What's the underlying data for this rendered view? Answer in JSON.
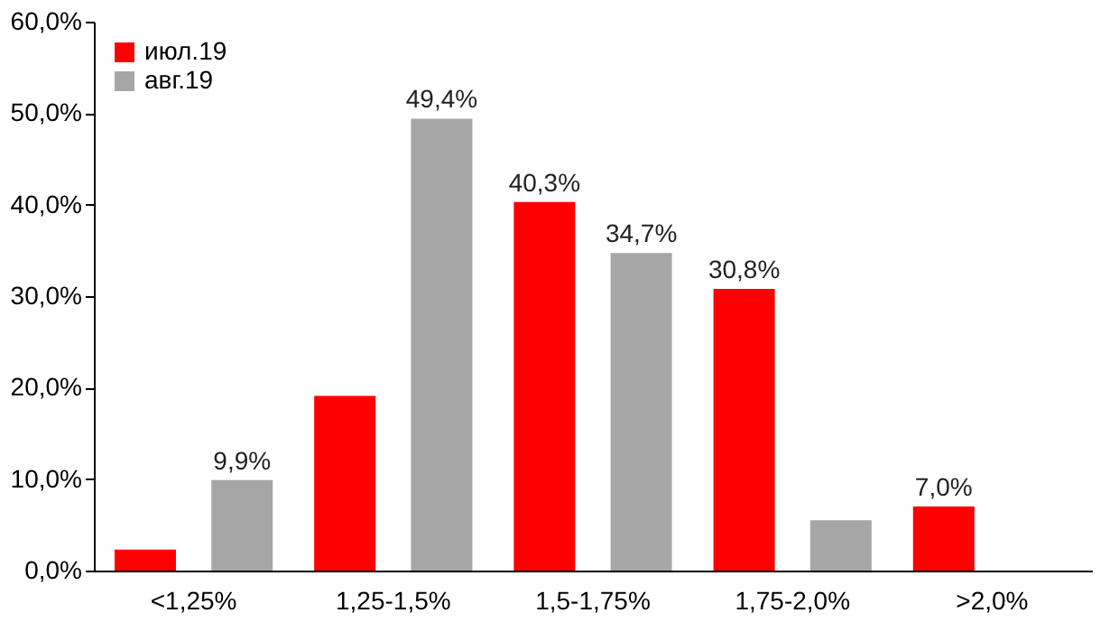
{
  "chart_data": {
    "type": "bar",
    "categories": [
      "<1,25%",
      "1,25-1,5%",
      "1,5-1,75%",
      "1,75-2,0%",
      ">2,0%"
    ],
    "series": [
      {
        "name": "июл.19",
        "color": "#ff0000",
        "values": [
          2.3,
          19.1,
          40.3,
          30.8,
          7.0
        ],
        "value_labels": [
          null,
          null,
          "40,3%",
          "30,8%",
          "7,0%"
        ]
      },
      {
        "name": "авг.19",
        "color": "#a6a6a6",
        "values": [
          9.9,
          49.4,
          34.7,
          5.5,
          null
        ],
        "value_labels": [
          "9,9%",
          "49,4%",
          "34,7%",
          null,
          null
        ]
      }
    ],
    "ylim": [
      0,
      60
    ],
    "yticks": [
      {
        "value": 0,
        "label": "0,0%"
      },
      {
        "value": 10,
        "label": "10,0%"
      },
      {
        "value": 20,
        "label": "20,0%"
      },
      {
        "value": 30,
        "label": "30,0%"
      },
      {
        "value": 40,
        "label": "40,0%"
      },
      {
        "value": 50,
        "label": "50,0%"
      },
      {
        "value": 60,
        "label": "60,0%"
      }
    ],
    "grid": false,
    "legend": "top left"
  }
}
